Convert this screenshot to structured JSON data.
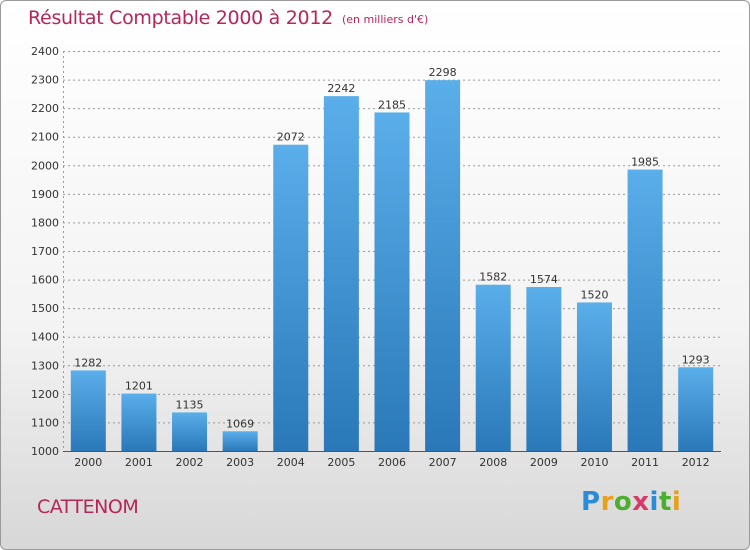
{
  "title": "Résultat Comptable 2000 à 2012",
  "subtitle": "(en milliers d'€)",
  "town": "CATTENOM",
  "logo_text": "Proxiti",
  "colors": {
    "title": "#b5265a",
    "bar_top": "#5aaeea",
    "bar_bottom": "#2a78b8",
    "grid": "#9a9a9a"
  },
  "chart_data": {
    "type": "bar",
    "title": "Résultat Comptable 2000 à 2012",
    "subtitle": "(en milliers d'€)",
    "xlabel": "",
    "ylabel": "",
    "categories": [
      "2000",
      "2001",
      "2002",
      "2003",
      "2004",
      "2005",
      "2006",
      "2007",
      "2008",
      "2009",
      "2010",
      "2011",
      "2012"
    ],
    "values": [
      1282,
      1201,
      1135,
      1069,
      2072,
      2242,
      2185,
      2298,
      1582,
      1574,
      1520,
      1985,
      1293
    ],
    "ylim": [
      1000,
      2400
    ],
    "yticks": [
      1000,
      1100,
      1200,
      1300,
      1400,
      1500,
      1600,
      1700,
      1800,
      1900,
      2000,
      2100,
      2200,
      2300,
      2400
    ],
    "grid": true,
    "legend": "none"
  }
}
